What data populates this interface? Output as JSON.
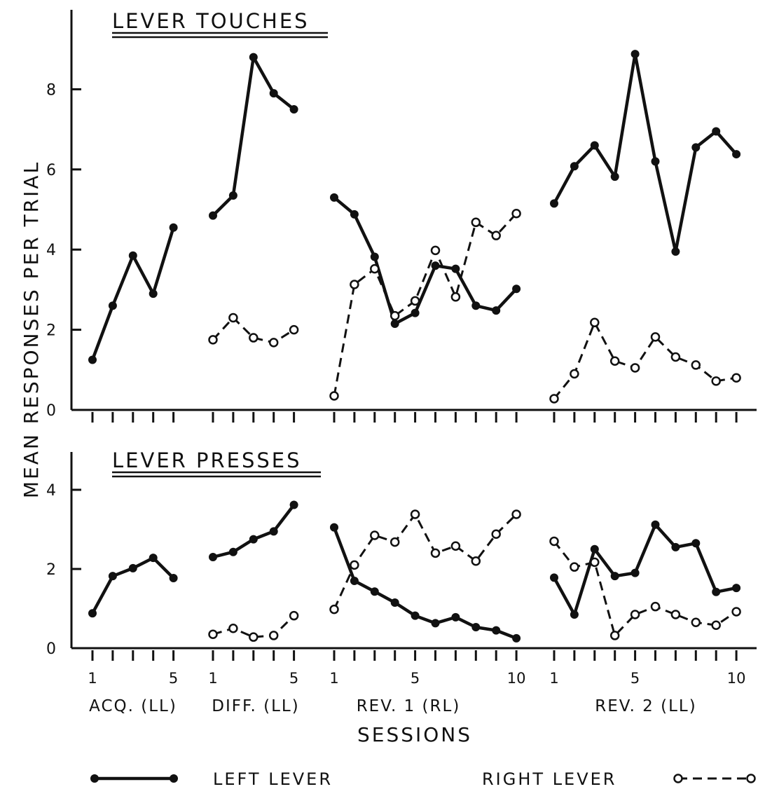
{
  "chart_data": [
    {
      "type": "line",
      "title": "LEVER TOUCHES",
      "ylabel": "MEAN RESPONSES PER TRIAL",
      "xlabel": "SESSIONS",
      "ylim": [
        0,
        9.5
      ],
      "yticks": [
        "0",
        "2",
        "4",
        "6",
        "8"
      ],
      "grid": false,
      "phases": [
        {
          "label": "ACQ. (LL)",
          "sessions": [
            1,
            2,
            3,
            4,
            5
          ],
          "series": [
            {
              "name": "LEFT LEVER",
              "values": [
                1.25,
                2.6,
                3.85,
                2.9,
                4.55
              ]
            }
          ]
        },
        {
          "label": "DIFF. (LL)",
          "sessions": [
            1,
            2,
            3,
            4,
            5
          ],
          "series": [
            {
              "name": "LEFT LEVER",
              "values": [
                4.85,
                5.35,
                8.8,
                7.9,
                7.5
              ]
            },
            {
              "name": "RIGHT LEVER",
              "values": [
                1.75,
                2.3,
                1.8,
                1.68,
                2.0
              ]
            }
          ]
        },
        {
          "label": "REV. 1 (RL)",
          "sessions": [
            1,
            2,
            3,
            4,
            5,
            6,
            7,
            8,
            9,
            10
          ],
          "series": [
            {
              "name": "LEFT LEVER",
              "values": [
                5.3,
                4.88,
                3.82,
                2.15,
                2.42,
                3.6,
                3.52,
                2.6,
                2.48,
                3.02
              ]
            },
            {
              "name": "RIGHT LEVER",
              "values": [
                0.35,
                3.13,
                3.52,
                2.35,
                2.72,
                3.98,
                2.82,
                4.68,
                4.35,
                4.9
              ]
            }
          ]
        },
        {
          "label": "REV. 2 (LL)",
          "sessions": [
            1,
            2,
            3,
            4,
            5,
            6,
            7,
            8,
            9,
            10
          ],
          "series": [
            {
              "name": "LEFT LEVER",
              "values": [
                5.15,
                6.08,
                6.6,
                5.82,
                8.88,
                6.2,
                3.95,
                6.55,
                6.95,
                6.38
              ]
            },
            {
              "name": "RIGHT LEVER",
              "values": [
                0.28,
                0.9,
                2.18,
                1.22,
                1.05,
                1.82,
                1.32,
                1.12,
                0.72,
                0.8
              ]
            }
          ]
        }
      ]
    },
    {
      "type": "line",
      "title": "LEVER PRESSES",
      "ylabel": "MEAN RESPONSES PER TRIAL",
      "xlabel": "SESSIONS",
      "ylim": [
        0,
        5
      ],
      "yticks": [
        "0",
        "2",
        "4"
      ],
      "grid": false,
      "phases": [
        {
          "label": "ACQ. (LL)",
          "sessions": [
            1,
            2,
            3,
            4,
            5
          ],
          "series": [
            {
              "name": "LEFT LEVER",
              "values": [
                0.88,
                1.82,
                2.02,
                2.28,
                1.77
              ]
            }
          ]
        },
        {
          "label": "DIFF. (LL)",
          "sessions": [
            1,
            2,
            3,
            4,
            5
          ],
          "series": [
            {
              "name": "LEFT LEVER",
              "values": [
                2.3,
                2.43,
                2.75,
                2.95,
                3.62
              ]
            },
            {
              "name": "RIGHT LEVER",
              "values": [
                0.35,
                0.5,
                0.28,
                0.32,
                0.82
              ]
            }
          ]
        },
        {
          "label": "REV. 1 (RL)",
          "sessions": [
            1,
            2,
            3,
            4,
            5,
            6,
            7,
            8,
            9,
            10
          ],
          "series": [
            {
              "name": "LEFT LEVER",
              "values": [
                3.05,
                1.7,
                1.43,
                1.15,
                0.82,
                0.63,
                0.78,
                0.53,
                0.45,
                0.25
              ]
            },
            {
              "name": "RIGHT LEVER",
              "values": [
                0.98,
                2.1,
                2.85,
                2.68,
                3.38,
                2.4,
                2.58,
                2.2,
                2.88,
                3.38
              ]
            }
          ]
        },
        {
          "label": "REV. 2 (LL)",
          "sessions": [
            1,
            2,
            3,
            4,
            5,
            6,
            7,
            8,
            9,
            10
          ],
          "series": [
            {
              "name": "LEFT LEVER",
              "values": [
                1.78,
                0.85,
                2.5,
                1.82,
                1.9,
                3.12,
                2.55,
                2.65,
                1.42,
                1.52
              ]
            },
            {
              "name": "RIGHT LEVER",
              "values": [
                2.7,
                2.05,
                2.17,
                0.32,
                0.85,
                1.05,
                0.85,
                0.65,
                0.58,
                0.92
              ]
            }
          ]
        }
      ]
    }
  ],
  "axes": {
    "ylabel": "MEAN RESPONSES PER TRIAL",
    "xlabel": "SESSIONS",
    "xtick_labels": [
      {
        "phase": 0,
        "labels": [
          {
            "session": 1,
            "text": "1"
          },
          {
            "session": 5,
            "text": "5"
          }
        ]
      },
      {
        "phase": 1,
        "labels": [
          {
            "session": 1,
            "text": "1"
          },
          {
            "session": 5,
            "text": "5"
          }
        ]
      },
      {
        "phase": 2,
        "labels": [
          {
            "session": 1,
            "text": "1"
          },
          {
            "session": 5,
            "text": "5"
          },
          {
            "session": 10,
            "text": "10"
          }
        ]
      },
      {
        "phase": 3,
        "labels": [
          {
            "session": 1,
            "text": "1"
          },
          {
            "session": 5,
            "text": "5"
          },
          {
            "session": 10,
            "text": "10"
          }
        ]
      }
    ]
  },
  "legend": {
    "placement": "bottom",
    "left_label": "LEFT LEVER",
    "right_label": "RIGHT LEVER"
  }
}
